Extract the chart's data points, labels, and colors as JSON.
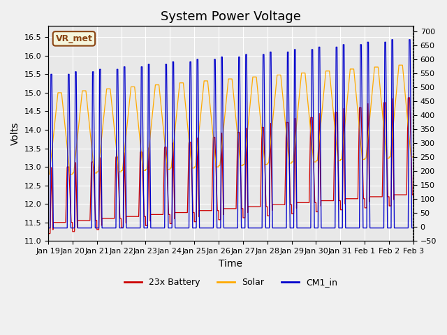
{
  "title": "System Power Voltage",
  "xlabel": "Time",
  "ylabel": "Volts",
  "annotation": "VR_met",
  "legend_labels": [
    "23x Battery",
    "Solar",
    "CM1_in"
  ],
  "legend_colors": [
    "#cc0000",
    "#ffaa00",
    "#0000cc"
  ],
  "ylim_left": [
    11.0,
    16.8
  ],
  "ylim_right": [
    -50,
    720
  ],
  "yticks_left": [
    11.0,
    11.5,
    12.0,
    12.5,
    13.0,
    13.5,
    14.0,
    14.5,
    15.0,
    15.5,
    16.0,
    16.5
  ],
  "yticks_right": [
    -50,
    0,
    50,
    100,
    150,
    200,
    250,
    300,
    350,
    400,
    450,
    500,
    550,
    600,
    650,
    700
  ],
  "xtick_labels": [
    "Jan 19",
    "Jan 20",
    "Jan 21",
    "Jan 22",
    "Jan 23",
    "Jan 24",
    "Jan 25",
    "Jan 26",
    "Jan 27",
    "Jan 28",
    "Jan 29",
    "Jan 30",
    "Jan 31",
    "Feb 1",
    "Feb 2",
    "Feb 3"
  ],
  "background_color": "#f0f0f0",
  "plot_bg_color": "#e8e8e8",
  "grid_color": "#ffffff",
  "title_fontsize": 13,
  "axis_fontsize": 10,
  "tick_fontsize": 8
}
